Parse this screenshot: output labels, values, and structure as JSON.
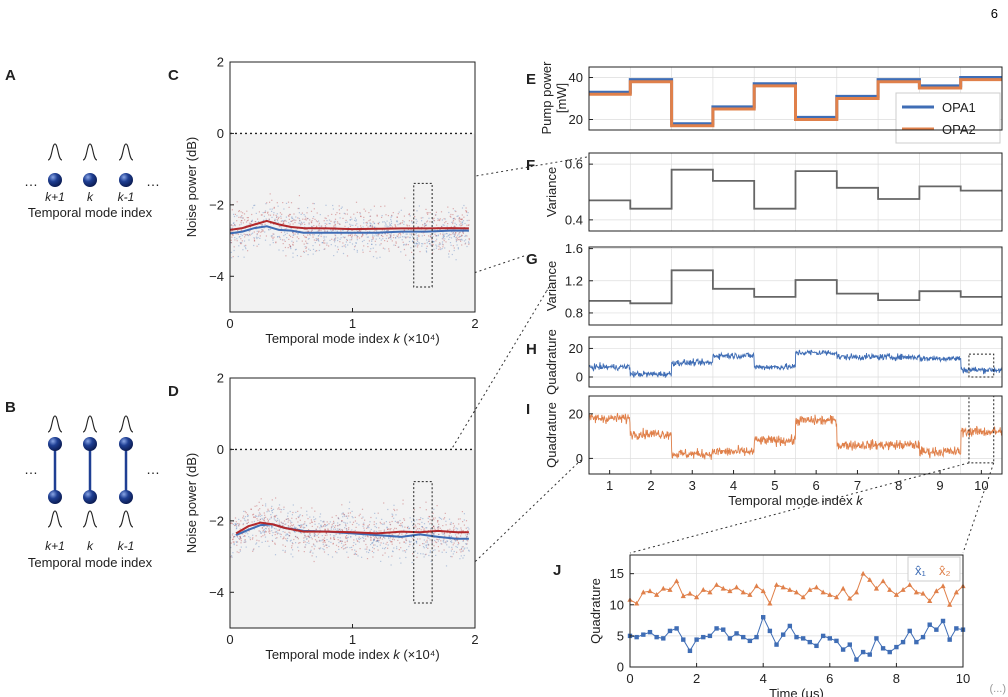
{
  "page_number": "6",
  "bottom_right_text": "(...)",
  "panels": {
    "A": {
      "letter": "A",
      "mode_labels": [
        "k+1",
        "k",
        "k-1"
      ],
      "ellipsis": "…",
      "caption": "Temporal mode index"
    },
    "B": {
      "letter": "B",
      "mode_labels": [
        "k+1",
        "k",
        "k-1"
      ],
      "ellipsis": "…",
      "caption": "Temporal mode index"
    }
  },
  "colors": {
    "blue": "#3f6db5",
    "red": "#b2282b",
    "orange": "#e0804a",
    "gray": "#666666",
    "sphere": "#1f3f93",
    "plot_bg": "#f2f2f2",
    "grid": "#dddddd"
  },
  "chart_data": [
    {
      "id": "C",
      "letter": "C",
      "type": "scatter",
      "xlabel": "Temporal mode index k (×10⁴)",
      "ylabel": "Noise power (dB)",
      "xlim": [
        0,
        2
      ],
      "ylim": [
        -5,
        2
      ],
      "xticks": [
        "0",
        "1",
        "2"
      ],
      "yticks": [
        "2",
        "0",
        "−2",
        "−4"
      ],
      "reference_line": 0,
      "series": [
        {
          "color": "blue",
          "x": [
            0,
            0.1,
            0.2,
            0.3,
            0.4,
            0.5,
            0.6,
            0.8,
            1.0,
            1.2,
            1.4,
            1.6,
            1.8,
            1.95
          ],
          "y": [
            -2.8,
            -2.75,
            -2.65,
            -2.6,
            -2.7,
            -2.72,
            -2.78,
            -2.78,
            -2.78,
            -2.78,
            -2.75,
            -2.75,
            -2.72,
            -2.72
          ]
        },
        {
          "color": "red",
          "x": [
            0,
            0.1,
            0.2,
            0.3,
            0.4,
            0.5,
            0.6,
            0.8,
            1.0,
            1.2,
            1.4,
            1.6,
            1.8,
            1.95
          ],
          "y": [
            -2.7,
            -2.65,
            -2.55,
            -2.45,
            -2.55,
            -2.62,
            -2.65,
            -2.66,
            -2.68,
            -2.67,
            -2.66,
            -2.66,
            -2.65,
            -2.66
          ]
        }
      ],
      "highlight_box": {
        "x": [
          1.5,
          1.65
        ],
        "y": [
          -4.3,
          -1.4
        ]
      }
    },
    {
      "id": "D",
      "letter": "D",
      "type": "scatter",
      "xlabel": "Temporal mode index k (×10⁴)",
      "ylabel": "Noise power (dB)",
      "xlim": [
        0,
        2
      ],
      "ylim": [
        -5,
        2
      ],
      "xticks": [
        "0",
        "1",
        "2"
      ],
      "yticks": [
        "2",
        "0",
        "−2",
        "−4"
      ],
      "reference_line": 0,
      "series": [
        {
          "color": "blue",
          "x": [
            0.05,
            0.15,
            0.25,
            0.35,
            0.45,
            0.6,
            0.8,
            1.0,
            1.2,
            1.4,
            1.55,
            1.7,
            1.85,
            1.95
          ],
          "y": [
            -2.4,
            -2.25,
            -2.12,
            -2.1,
            -2.2,
            -2.28,
            -2.3,
            -2.35,
            -2.4,
            -2.45,
            -2.38,
            -2.45,
            -2.5,
            -2.5
          ]
        },
        {
          "color": "red",
          "x": [
            0.05,
            0.15,
            0.25,
            0.35,
            0.45,
            0.6,
            0.8,
            1.0,
            1.2,
            1.4,
            1.55,
            1.7,
            1.85,
            1.95
          ],
          "y": [
            -2.35,
            -2.15,
            -2.05,
            -2.1,
            -2.2,
            -2.3,
            -2.3,
            -2.32,
            -2.35,
            -2.3,
            -2.32,
            -2.28,
            -2.32,
            -2.32
          ]
        }
      ],
      "highlight_box": {
        "x": [
          1.5,
          1.65
        ],
        "y": [
          -4.3,
          -0.9
        ]
      }
    },
    {
      "id": "E",
      "letter": "E",
      "type": "line",
      "ylabel_lines": [
        "Pump power",
        "[mW]"
      ],
      "xlim": [
        0.5,
        10.5
      ],
      "ylim": [
        15,
        45
      ],
      "yticks": [
        "40",
        "20"
      ],
      "series": [
        {
          "name": "OPA1",
          "color": "blue",
          "values": [
            33,
            39,
            18,
            26,
            37,
            21,
            31,
            39,
            36,
            40
          ]
        },
        {
          "name": "OPA2",
          "color": "orange",
          "values": [
            32,
            38,
            17,
            25,
            36,
            20,
            30,
            38,
            35,
            39
          ]
        }
      ],
      "legend": "top-right"
    },
    {
      "id": "F",
      "letter": "F",
      "type": "line",
      "ylabel": "Variance",
      "xlim": [
        0.5,
        10.5
      ],
      "ylim": [
        0.36,
        0.64
      ],
      "yticks": [
        "0.6",
        "0.4"
      ],
      "series": [
        {
          "color": "gray",
          "values": [
            0.47,
            0.44,
            0.58,
            0.54,
            0.44,
            0.575,
            0.515,
            0.475,
            0.52,
            0.505
          ]
        }
      ]
    },
    {
      "id": "G",
      "letter": "G",
      "type": "line",
      "ylabel": "Variance",
      "xlim": [
        0.5,
        10.5
      ],
      "ylim": [
        0.65,
        1.62
      ],
      "yticks": [
        "1.6",
        "1.2",
        "0.8"
      ],
      "series": [
        {
          "color": "gray",
          "values": [
            0.95,
            0.92,
            1.33,
            1.1,
            1.0,
            1.21,
            1.04,
            0.96,
            1.07,
            1.0
          ]
        }
      ]
    },
    {
      "id": "H",
      "letter": "H",
      "type": "line",
      "ylabel": "Quadrature",
      "xlim": [
        0.5,
        10.5
      ],
      "ylim": [
        -7,
        28
      ],
      "yticks": [
        "20",
        "0"
      ],
      "series": [
        {
          "color": "blue",
          "values": [
            7,
            2,
            10,
            15,
            7,
            17,
            14,
            14,
            13,
            5
          ]
        }
      ],
      "highlight_box": {
        "x": [
          9.7,
          10.3
        ],
        "y": [
          0,
          16
        ]
      }
    },
    {
      "id": "I",
      "letter": "I",
      "type": "line",
      "ylabel": "Quadrature",
      "xlim": [
        0.5,
        10.5
      ],
      "ylim": [
        -7,
        28
      ],
      "yticks": [
        "20",
        "0"
      ],
      "xlabel": "Temporal mode index k",
      "xticks": [
        "1",
        "2",
        "3",
        "4",
        "5",
        "6",
        "7",
        "8",
        "9",
        "10"
      ],
      "series": [
        {
          "color": "orange",
          "values": [
            18,
            11,
            2,
            3,
            8,
            17,
            6,
            6,
            3,
            12
          ]
        }
      ],
      "highlight_box": {
        "x": [
          9.7,
          10.3
        ],
        "y": [
          -2,
          28
        ]
      }
    },
    {
      "id": "J",
      "letter": "J",
      "type": "line",
      "ylabel": "Quadrature",
      "xlabel": "Time (μs)",
      "xlim": [
        0,
        10
      ],
      "ylim": [
        0,
        18
      ],
      "xticks": [
        "0",
        "2",
        "4",
        "6",
        "8",
        "10"
      ],
      "yticks": [
        "15",
        "10",
        "5",
        "0"
      ],
      "series": [
        {
          "name": "x̂₁",
          "color": "blue",
          "x": [
            0.0,
            0.2,
            0.4,
            0.6,
            0.8,
            1.0,
            1.2,
            1.4,
            1.6,
            1.8,
            2.0,
            2.2,
            2.4,
            2.6,
            2.8,
            3.0,
            3.2,
            3.4,
            3.6,
            3.8,
            4.0,
            4.2,
            4.4,
            4.6,
            4.8,
            5.0,
            5.2,
            5.4,
            5.6,
            5.8,
            6.0,
            6.2,
            6.4,
            6.6,
            6.8,
            7.0,
            7.2,
            7.4,
            7.6,
            7.8,
            8.0,
            8.2,
            8.4,
            8.6,
            8.8,
            9.0,
            9.2,
            9.4,
            9.6,
            9.8,
            10.0
          ],
          "y": [
            5.0,
            4.8,
            5.2,
            5.6,
            4.8,
            4.6,
            5.8,
            6.2,
            4.4,
            2.6,
            4.4,
            4.8,
            5.0,
            6.2,
            6.0,
            4.6,
            5.4,
            4.8,
            4.2,
            4.8,
            8.0,
            5.8,
            3.6,
            5.2,
            6.6,
            4.8,
            4.6,
            4.0,
            3.4,
            5.0,
            4.6,
            4.2,
            2.8,
            3.6,
            1.2,
            2.4,
            2.0,
            4.6,
            3.0,
            2.4,
            3.2,
            4.0,
            5.8,
            4.0,
            4.8,
            6.8,
            6.0,
            7.4,
            4.4,
            6.2,
            6.0
          ]
        },
        {
          "name": "x̂₂",
          "color": "orange",
          "x": [
            0.0,
            0.2,
            0.4,
            0.6,
            0.8,
            1.0,
            1.2,
            1.4,
            1.6,
            1.8,
            2.0,
            2.2,
            2.4,
            2.6,
            2.8,
            3.0,
            3.2,
            3.4,
            3.6,
            3.8,
            4.0,
            4.2,
            4.4,
            4.6,
            4.8,
            5.0,
            5.2,
            5.4,
            5.6,
            5.8,
            6.0,
            6.2,
            6.4,
            6.6,
            6.8,
            7.0,
            7.2,
            7.4,
            7.6,
            7.8,
            8.0,
            8.2,
            8.4,
            8.6,
            8.8,
            9.0,
            9.2,
            9.4,
            9.6,
            9.8,
            10.0
          ],
          "y": [
            10.8,
            10.2,
            12.0,
            12.2,
            11.6,
            12.6,
            12.4,
            13.8,
            11.4,
            11.8,
            11.2,
            12.4,
            12.0,
            13.2,
            12.6,
            12.2,
            12.8,
            12.0,
            11.6,
            13.0,
            12.2,
            10.2,
            13.2,
            12.8,
            12.4,
            12.0,
            11.2,
            12.4,
            12.8,
            12.0,
            11.6,
            11.2,
            12.6,
            11.0,
            12.0,
            15.0,
            14.0,
            12.6,
            13.8,
            12.4,
            11.6,
            12.4,
            13.2,
            12.0,
            11.8,
            10.6,
            12.2,
            13.0,
            10.0,
            12.0,
            13.0
          ]
        }
      ]
    }
  ]
}
